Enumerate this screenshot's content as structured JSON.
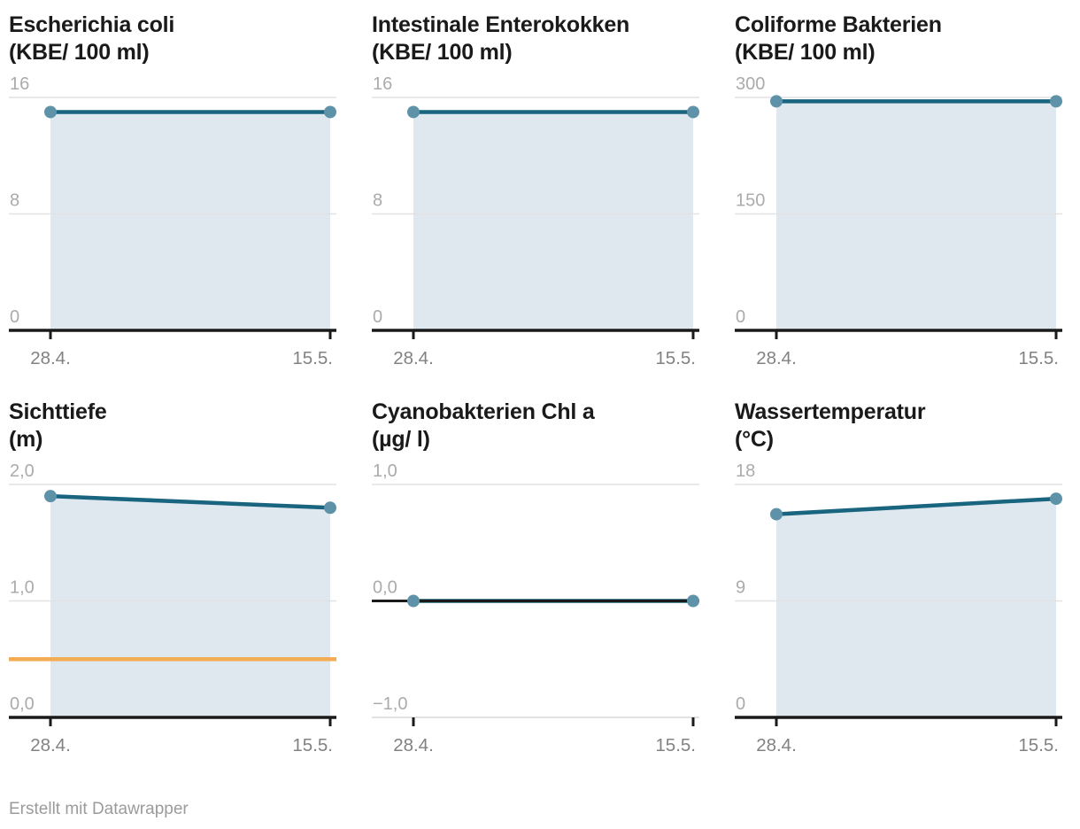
{
  "footer": {
    "credit": "Erstellt mit Datawrapper"
  },
  "palette": {
    "line": "#19647f",
    "point": "#5d92a8",
    "area": "#dfe8ef",
    "reference": "#f3ac53",
    "grid": "#e2e2e2",
    "axis": "#1a1a1a",
    "light_axis": "#e2e2e2",
    "tick_label": "#ababab",
    "x_label": "#828282",
    "title": "#1a1a1a",
    "credit": "#9b9b9b"
  },
  "chart_data": [
    {
      "type": "area",
      "title": "Escherichia coli",
      "subtitle": "(KBE/ 100 ml)",
      "categories": [
        "28.4.",
        "15.5."
      ],
      "values": [
        15,
        15
      ],
      "ylim": [
        0,
        16
      ],
      "yticks": [
        {
          "v": 16,
          "label": "16"
        },
        {
          "v": 8,
          "label": "8"
        },
        {
          "v": 0,
          "label": "0"
        }
      ],
      "grid": true,
      "legend": "none",
      "reference_line": null
    },
    {
      "type": "area",
      "title": "Intestinale Enterokokken",
      "subtitle": "(KBE/ 100 ml)",
      "categories": [
        "28.4.",
        "15.5."
      ],
      "values": [
        15,
        15
      ],
      "ylim": [
        0,
        16
      ],
      "yticks": [
        {
          "v": 16,
          "label": "16"
        },
        {
          "v": 8,
          "label": "8"
        },
        {
          "v": 0,
          "label": "0"
        }
      ],
      "grid": true,
      "legend": "none",
      "reference_line": null
    },
    {
      "type": "area",
      "title": "Coliforme Bakterien",
      "subtitle": "(KBE/ 100 ml)",
      "categories": [
        "28.4.",
        "15.5."
      ],
      "values": [
        295,
        295
      ],
      "ylim": [
        0,
        300
      ],
      "yticks": [
        {
          "v": 300,
          "label": "300"
        },
        {
          "v": 150,
          "label": "150"
        },
        {
          "v": 0,
          "label": "0"
        }
      ],
      "grid": true,
      "legend": "none",
      "reference_line": null
    },
    {
      "type": "area",
      "title": "Sichttiefe",
      "subtitle": "(m)",
      "categories": [
        "28.4.",
        "15.5."
      ],
      "values": [
        1.9,
        1.8
      ],
      "ylim": [
        0,
        2
      ],
      "yticks": [
        {
          "v": 2,
          "label": "2,0"
        },
        {
          "v": 1,
          "label": "1,0"
        },
        {
          "v": 0,
          "label": "0,0"
        }
      ],
      "grid": true,
      "legend": "none",
      "reference_line": {
        "value": 0.5
      }
    },
    {
      "type": "area",
      "title": "Cyanobakterien Chl a",
      "subtitle": "(µg/ l)",
      "categories": [
        "28.4.",
        "15.5."
      ],
      "values": [
        0,
        0
      ],
      "ylim": [
        -1,
        1
      ],
      "yticks": [
        {
          "v": 1,
          "label": "1,0"
        },
        {
          "v": 0,
          "label": "0,0"
        },
        {
          "v": -1,
          "label": "−1,0"
        }
      ],
      "grid": true,
      "legend": "none",
      "reference_line": null
    },
    {
      "type": "area",
      "title": "Wassertemperatur",
      "subtitle": "(°C)",
      "categories": [
        "28.4.",
        "15.5."
      ],
      "values": [
        15.7,
        16.9
      ],
      "ylim": [
        0,
        18
      ],
      "yticks": [
        {
          "v": 18,
          "label": "18"
        },
        {
          "v": 9,
          "label": "9"
        },
        {
          "v": 0,
          "label": "0"
        }
      ],
      "grid": true,
      "legend": "none",
      "reference_line": null
    }
  ]
}
